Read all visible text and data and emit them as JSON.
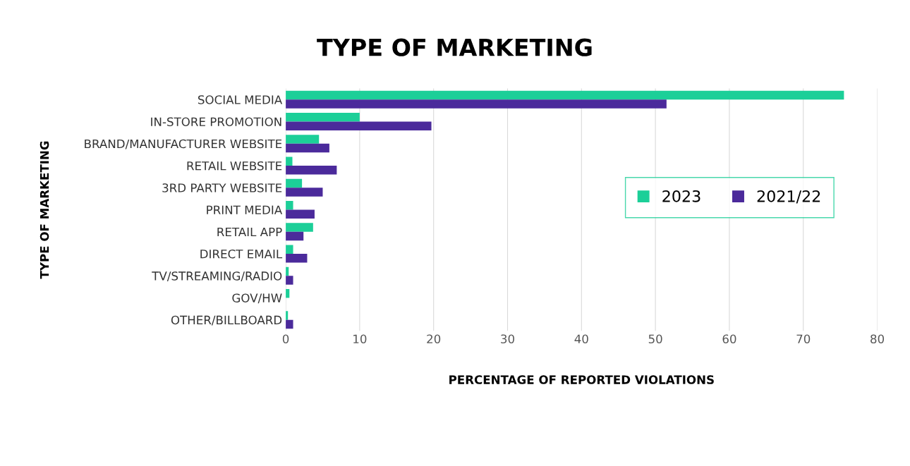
{
  "chart_data": {
    "type": "bar",
    "orientation": "horizontal",
    "title": "TYPE OF MARKETING",
    "xlabel": "PERCENTAGE OF REPORTED VIOLATIONS",
    "ylabel": "TYPE OF MARKETING",
    "categories": [
      "SOCIAL MEDIA",
      "IN-STORE PROMOTION",
      "BRAND/MANUFACTURER WEBSITE",
      "RETAIL WEBSITE",
      "3RD PARTY WEBSITE",
      "PRINT MEDIA",
      "RETAIL APP",
      "DIRECT EMAIL",
      "TV/STREAMING/RADIO",
      "GOV/HW",
      "OTHER/BILLBOARD"
    ],
    "series": [
      {
        "name": "2023",
        "color": "#1ccf98",
        "values": [
          75.5,
          10,
          4.5,
          0.9,
          2.2,
          1.0,
          3.7,
          1.0,
          0.4,
          0.5,
          0.3
        ]
      },
      {
        "name": "2021/22",
        "color": "#4b2a9b",
        "values": [
          51.5,
          19.7,
          5.9,
          6.9,
          5.0,
          3.9,
          2.4,
          2.9,
          1.0,
          0,
          1.0
        ]
      }
    ],
    "xlim": [
      0,
      80
    ],
    "xticks": [
      0,
      10,
      20,
      30,
      40,
      50,
      60,
      70,
      80
    ],
    "grid": "x",
    "legend": "right"
  }
}
